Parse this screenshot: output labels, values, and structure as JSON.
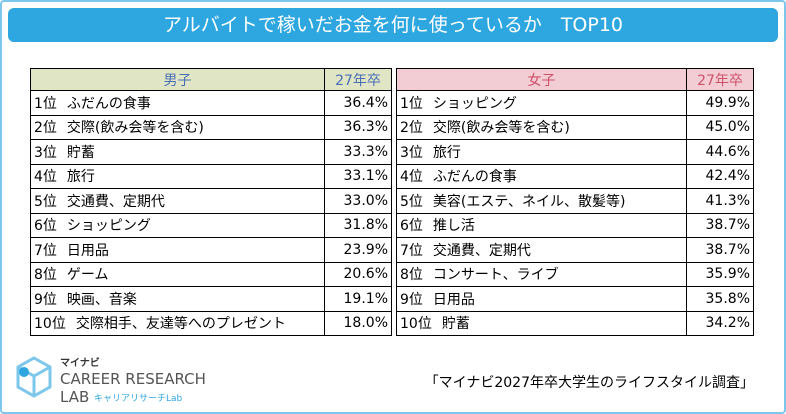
{
  "header": {
    "title": "アルバイトで稼いだお金を何に使っているか　TOP10"
  },
  "tables": [
    {
      "group": "男子",
      "year": "27年卒",
      "rows": [
        {
          "rank": "1位",
          "item": "ふだんの食事",
          "value": "36.4%"
        },
        {
          "rank": "2位",
          "item": "交際(飲み会等を含む)",
          "value": "36.3%"
        },
        {
          "rank": "3位",
          "item": "貯蓄",
          "value": "33.3%"
        },
        {
          "rank": "4位",
          "item": "旅行",
          "value": "33.1%"
        },
        {
          "rank": "5位",
          "item": "交通費、定期代",
          "value": "33.0%"
        },
        {
          "rank": "6位",
          "item": "ショッピング",
          "value": "31.8%"
        },
        {
          "rank": "7位",
          "item": "日用品",
          "value": "23.9%"
        },
        {
          "rank": "8位",
          "item": "ゲーム",
          "value": "20.6%"
        },
        {
          "rank": "9位",
          "item": "映画、音楽",
          "value": "19.1%"
        },
        {
          "rank": "10位",
          "item": "交際相手、友達等へのプレゼント",
          "value": "18.0%"
        }
      ]
    },
    {
      "group": "女子",
      "year": "27年卒",
      "rows": [
        {
          "rank": "1位",
          "item": "ショッピング",
          "value": "49.9%"
        },
        {
          "rank": "2位",
          "item": "交際(飲み会等を含む)",
          "value": "45.0%"
        },
        {
          "rank": "3位",
          "item": "旅行",
          "value": "44.6%"
        },
        {
          "rank": "4位",
          "item": "ふだんの食事",
          "value": "42.4%"
        },
        {
          "rank": "5位",
          "item": "美容(エステ、ネイル、散髪等)",
          "value": "41.3%"
        },
        {
          "rank": "6位",
          "item": "推し活",
          "value": "38.7%"
        },
        {
          "rank": "7位",
          "item": "交通費、定期代",
          "value": "38.7%"
        },
        {
          "rank": "8位",
          "item": "コンサート、ライブ",
          "value": "35.9%"
        },
        {
          "rank": "9位",
          "item": "日用品",
          "value": "35.8%"
        },
        {
          "rank": "10位",
          "item": "貯蓄",
          "value": "34.2%"
        }
      ]
    }
  ],
  "logo": {
    "brand": "マイナビ",
    "name": "CAREER RESEARCH",
    "sub": "LAB",
    "kana": "キャリアリサーチLab"
  },
  "source": "「マイナビ2027年卒大学生のライフスタイル調査」"
}
